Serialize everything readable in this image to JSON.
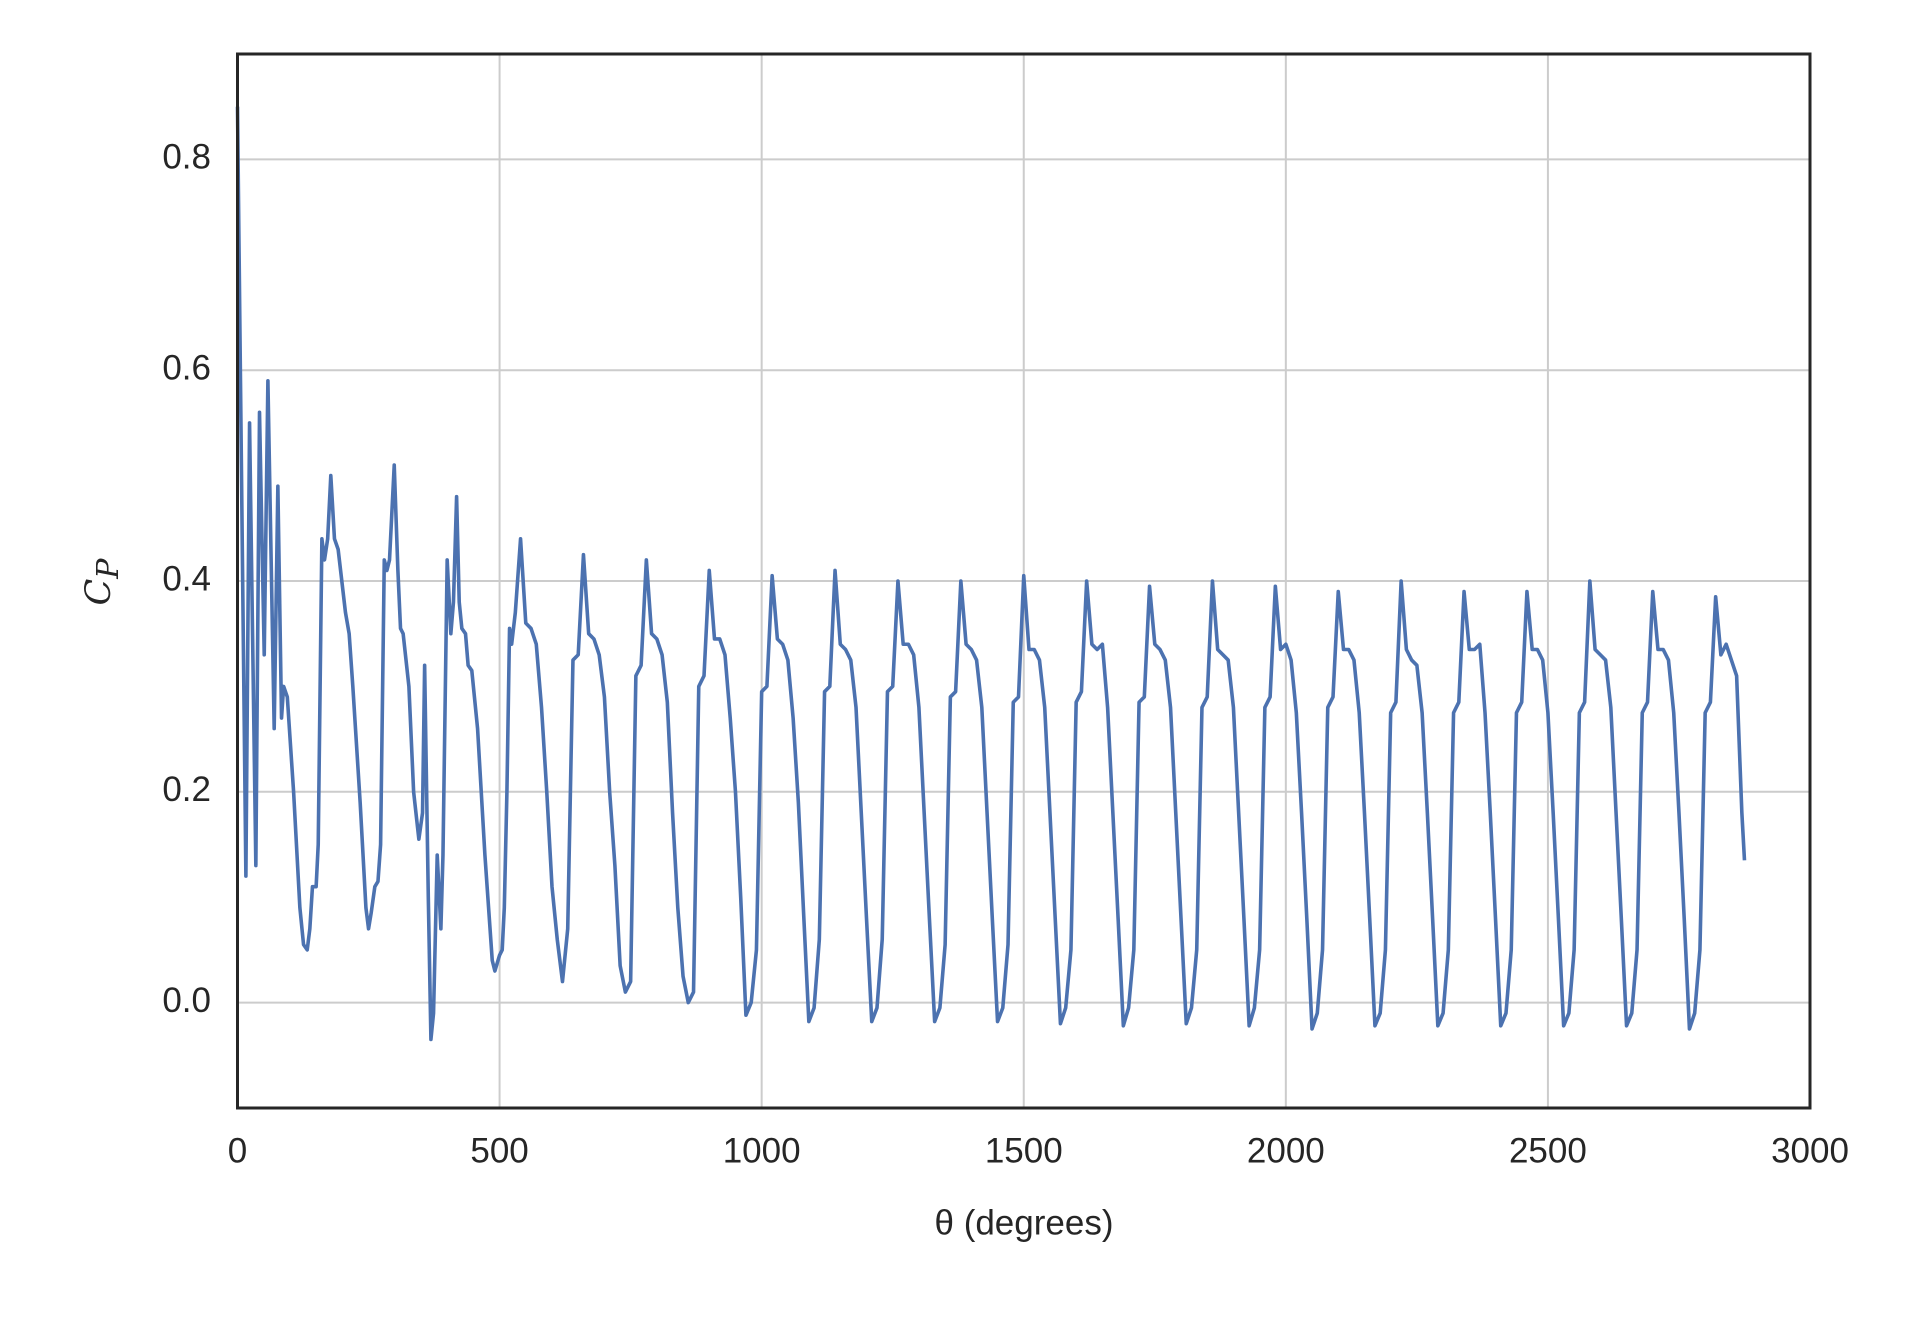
{
  "chart_data": {
    "type": "line",
    "xlabel": "θ (degrees)",
    "ylabel": "C_P",
    "color": "#4c72b0",
    "grid": true,
    "xlim": [
      0,
      3000
    ],
    "ylim": [
      -0.1,
      0.9
    ],
    "xticks": [
      0,
      500,
      1000,
      1500,
      2000,
      2500,
      3000
    ],
    "yticks": [
      {
        "value": 0,
        "label": "0.0"
      },
      0.2,
      0.4,
      0.6,
      0.8
    ],
    "x": [
      0,
      16,
      23,
      35,
      42,
      51,
      58,
      70,
      77,
      84,
      88,
      95,
      107,
      119,
      126,
      133,
      138,
      143,
      150,
      154,
      161,
      166,
      172,
      178,
      185,
      192,
      206,
      213,
      220,
      234,
      245,
      250,
      255,
      262,
      268,
      273,
      280,
      285,
      290,
      299,
      306,
      311,
      316,
      327,
      336,
      346,
      353,
      357,
      364,
      369,
      374,
      381,
      388,
      392,
      400,
      407,
      412,
      418,
      423,
      428,
      435,
      440,
      447,
      452,
      458,
      465,
      472,
      479,
      486,
      491,
      500,
      505,
      509,
      514,
      519,
      523,
      530,
      540,
      550,
      560,
      570,
      580,
      590,
      600,
      610,
      620,
      630,
      640,
      650,
      660,
      670,
      680,
      690,
      700,
      710,
      720,
      730,
      740,
      750,
      760,
      770,
      780,
      790,
      800,
      810,
      820,
      830,
      840,
      850,
      860,
      870,
      880,
      890,
      900,
      910,
      920,
      930,
      940,
      950,
      960,
      970,
      980,
      990,
      1000,
      1010,
      1020,
      1030,
      1040,
      1050,
      1060,
      1070,
      1080,
      1090,
      1100,
      1110,
      1120,
      1130,
      1140,
      1150,
      1160,
      1170,
      1180,
      1190,
      1200,
      1210,
      1220,
      1230,
      1240,
      1250,
      1260,
      1270,
      1280,
      1290,
      1300,
      1310,
      1320,
      1330,
      1340,
      1350,
      1360,
      1370,
      1380,
      1390,
      1400,
      1410,
      1420,
      1430,
      1440,
      1450,
      1460,
      1470,
      1480,
      1490,
      1500,
      1510,
      1520,
      1530,
      1540,
      1550,
      1560,
      1570,
      1580,
      1590,
      1600,
      1610,
      1620,
      1630,
      1640,
      1650,
      1660,
      1670,
      1680,
      1690,
      1700,
      1710,
      1720,
      1730,
      1740,
      1750,
      1760,
      1770,
      1780,
      1790,
      1800,
      1810,
      1820,
      1830,
      1840,
      1850,
      1860,
      1870,
      1880,
      1890,
      1900,
      1910,
      1920,
      1930,
      1940,
      1950,
      1960,
      1970,
      1980,
      1990,
      2000,
      2010,
      2020,
      2030,
      2040,
      2050,
      2060,
      2070,
      2080,
      2090,
      2100,
      2110,
      2120,
      2130,
      2140,
      2150,
      2160,
      2170,
      2180,
      2190,
      2200,
      2210,
      2220,
      2230,
      2240,
      2250,
      2260,
      2270,
      2280,
      2290,
      2300,
      2310,
      2320,
      2330,
      2340,
      2350,
      2360,
      2370,
      2380,
      2390,
      2400,
      2410,
      2420,
      2430,
      2440,
      2450,
      2460,
      2470,
      2480,
      2490,
      2500,
      2510,
      2520,
      2530,
      2540,
      2550,
      2560,
      2570,
      2580,
      2590,
      2600,
      2610,
      2620,
      2630,
      2640,
      2650,
      2660,
      2670,
      2680,
      2690,
      2700,
      2710,
      2720,
      2730,
      2740,
      2750,
      2760,
      2770,
      2780,
      2790,
      2800,
      2810,
      2820,
      2830,
      2840,
      2850,
      2860,
      2870,
      2875
    ],
    "values": [
      0.85,
      0.12,
      0.55,
      0.13,
      0.56,
      0.33,
      0.59,
      0.26,
      0.49,
      0.27,
      0.3,
      0.29,
      0.2,
      0.09,
      0.055,
      0.05,
      0.07,
      0.11,
      0.11,
      0.15,
      0.44,
      0.42,
      0.44,
      0.5,
      0.44,
      0.43,
      0.37,
      0.35,
      0.3,
      0.19,
      0.09,
      0.07,
      0.085,
      0.11,
      0.115,
      0.15,
      0.42,
      0.41,
      0.42,
      0.51,
      0.41,
      0.355,
      0.35,
      0.3,
      0.2,
      0.155,
      0.18,
      0.32,
      0.1,
      -0.035,
      -0.01,
      0.14,
      0.07,
      0.14,
      0.42,
      0.35,
      0.38,
      0.48,
      0.38,
      0.355,
      0.35,
      0.32,
      0.315,
      0.29,
      0.26,
      0.2,
      0.14,
      0.09,
      0.04,
      0.03,
      0.045,
      0.05,
      0.09,
      0.2,
      0.355,
      0.34,
      0.37,
      0.44,
      0.36,
      0.355,
      0.34,
      0.28,
      0.2,
      0.11,
      0.06,
      0.02,
      0.07,
      0.325,
      0.33,
      0.425,
      0.35,
      0.345,
      0.33,
      0.29,
      0.2,
      0.13,
      0.035,
      0.01,
      0.02,
      0.31,
      0.32,
      0.42,
      0.35,
      0.345,
      0.33,
      0.285,
      0.18,
      0.09,
      0.025,
      0.0,
      0.01,
      0.3,
      0.31,
      0.41,
      0.345,
      0.345,
      0.33,
      0.27,
      0.2,
      0.1,
      -0.012,
      0.0,
      0.05,
      0.295,
      0.3,
      0.405,
      0.345,
      0.34,
      0.325,
      0.27,
      0.19,
      0.085,
      -0.018,
      -0.005,
      0.06,
      0.295,
      0.3,
      0.41,
      0.34,
      0.335,
      0.325,
      0.28,
      0.18,
      0.08,
      -0.018,
      -0.005,
      0.06,
      0.295,
      0.3,
      0.4,
      0.34,
      0.34,
      0.33,
      0.28,
      0.18,
      0.08,
      -0.018,
      -0.005,
      0.055,
      0.29,
      0.295,
      0.4,
      0.34,
      0.335,
      0.325,
      0.28,
      0.18,
      0.08,
      -0.018,
      -0.005,
      0.055,
      0.285,
      0.29,
      0.405,
      0.335,
      0.335,
      0.325,
      0.28,
      0.18,
      0.08,
      -0.02,
      -0.005,
      0.05,
      0.285,
      0.295,
      0.4,
      0.34,
      0.335,
      0.34,
      0.28,
      0.18,
      0.08,
      -0.022,
      -0.005,
      0.05,
      0.285,
      0.29,
      0.395,
      0.34,
      0.335,
      0.325,
      0.28,
      0.18,
      0.08,
      -0.02,
      -0.005,
      0.05,
      0.28,
      0.29,
      0.4,
      0.335,
      0.33,
      0.325,
      0.28,
      0.18,
      0.08,
      -0.022,
      -0.005,
      0.05,
      0.28,
      0.29,
      0.395,
      0.335,
      0.34,
      0.325,
      0.275,
      0.18,
      0.08,
      -0.025,
      -0.01,
      0.05,
      0.28,
      0.29,
      0.39,
      0.335,
      0.335,
      0.325,
      0.275,
      0.18,
      0.08,
      -0.022,
      -0.01,
      0.05,
      0.275,
      0.285,
      0.4,
      0.335,
      0.325,
      0.32,
      0.275,
      0.18,
      0.08,
      -0.022,
      -0.01,
      0.05,
      0.275,
      0.285,
      0.39,
      0.335,
      0.335,
      0.34,
      0.275,
      0.18,
      0.08,
      -0.022,
      -0.01,
      0.05,
      0.275,
      0.285,
      0.39,
      0.335,
      0.335,
      0.325,
      0.275,
      0.18,
      0.08,
      -0.022,
      -0.01,
      0.05,
      0.275,
      0.285,
      0.4,
      0.335,
      0.33,
      0.325,
      0.28,
      0.18,
      0.08,
      -0.022,
      -0.01,
      0.05,
      0.275,
      0.285,
      0.39,
      0.335,
      0.335,
      0.325,
      0.275,
      0.18,
      0.08,
      -0.025,
      -0.01,
      0.05,
      0.275,
      0.285,
      0.385,
      0.33,
      0.34,
      0.325,
      0.31,
      0.18,
      0.135
    ]
  }
}
